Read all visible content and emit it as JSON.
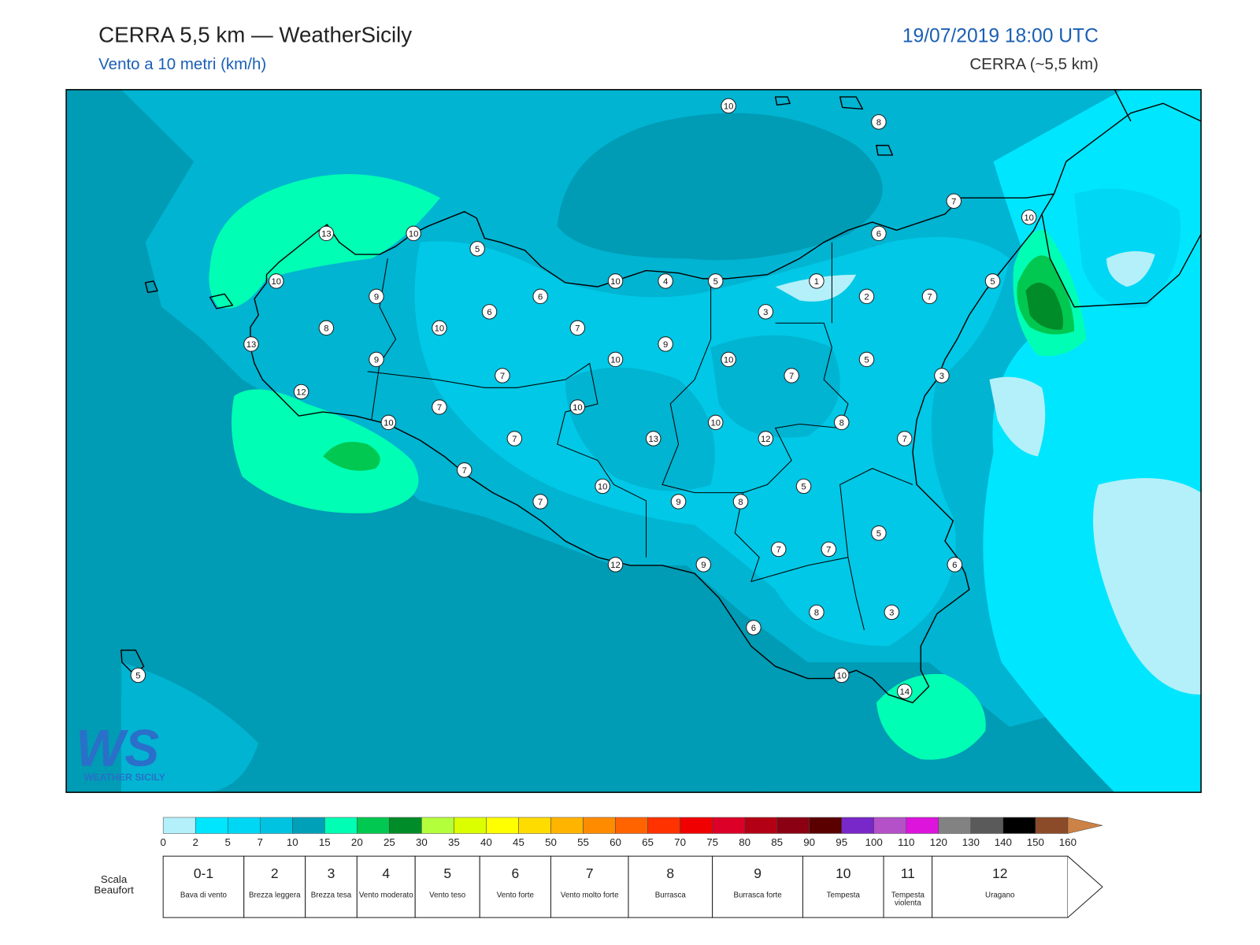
{
  "header": {
    "title": "CERRA 5,5 km — WeatherSicily",
    "subtitle": "Vento a 10 metri (km/h)",
    "date": "19/07/2019 18:00 UTC",
    "model": "CERRA (~5,5 km)"
  },
  "stations": [
    10,
    8,
    7,
    10,
    13,
    10,
    5,
    6,
    10,
    10,
    4,
    5,
    1,
    5,
    9,
    6,
    2,
    7,
    6,
    3,
    8,
    10,
    7,
    13,
    9,
    9,
    10,
    10,
    5,
    7,
    7,
    3,
    12,
    7,
    10,
    10,
    10,
    8,
    7,
    13,
    12,
    7,
    7,
    10,
    5,
    7,
    9,
    8,
    5,
    7,
    7,
    6,
    12,
    9,
    8,
    3,
    6,
    10,
    14,
    5
  ],
  "logo": {
    "letters": "WS",
    "text": "WEATHER SICILY"
  },
  "colorbar": {
    "ticks": [
      0,
      2,
      5,
      7,
      10,
      15,
      20,
      25,
      30,
      35,
      40,
      45,
      50,
      55,
      60,
      65,
      70,
      75,
      80,
      85,
      90,
      95,
      100,
      110,
      120,
      130,
      140,
      150,
      160
    ],
    "colors": [
      "#b4f0fa",
      "#00e6ff",
      "#00d7f5",
      "#00c3e1",
      "#00a0b9",
      "#00ffb4",
      "#00c850",
      "#008c28",
      "#b4ff3c",
      "#dcff00",
      "#ffff00",
      "#ffdc00",
      "#ffb400",
      "#ff8c00",
      "#ff6400",
      "#ff3200",
      "#f00000",
      "#dc0028",
      "#b40014",
      "#8c0014",
      "#5a0000",
      "#7828c8",
      "#b450c8",
      "#dc14dc",
      "#828282",
      "#5a5a5a",
      "#000000",
      "#8c4b28",
      "#cd8246"
    ]
  },
  "beaufort": {
    "label": "Scala Beaufort",
    "scale": [
      {
        "force": "0-1",
        "description": "Bava di vento"
      },
      {
        "force": "2",
        "description": "Brezza leggera"
      },
      {
        "force": "3",
        "description": "Brezza tesa"
      },
      {
        "force": "4",
        "description": "Vento moderato"
      },
      {
        "force": "5",
        "description": "Vento teso"
      },
      {
        "force": "6",
        "description": "Vento forte"
      },
      {
        "force": "7",
        "description": "Vento molto forte"
      },
      {
        "force": "8",
        "description": "Burrasca"
      },
      {
        "force": "9",
        "description": "Burrasca forte"
      },
      {
        "force": "10",
        "description": "Tempesta"
      },
      {
        "force": "11",
        "description": "Tempesta violenta"
      },
      {
        "force": "12",
        "description": "Uragano"
      }
    ]
  }
}
